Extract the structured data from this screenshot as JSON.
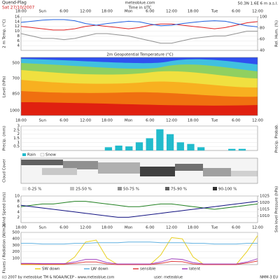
{
  "header": {
    "location": "Quend-Plag",
    "date": "Sat 27/10/2007",
    "site": "meteoblue.com",
    "time_note": "Time in UTC",
    "coords": "50.3N 1.6E 6 m a.s.l."
  },
  "time_axis": [
    "18:00",
    "Sun",
    "6:00",
    "12:00",
    "18:00",
    "Mon",
    "6:00",
    "12:00",
    "18:00",
    "Tue",
    "6:00",
    "12:00"
  ],
  "chart_data": [
    {
      "type": "line",
      "y_label": "2 m Temp. (°C)",
      "y2_label": "Rel. Hum. (%)",
      "ylim": [
        2,
        16
      ],
      "yticks": [
        4,
        6,
        8,
        10,
        12,
        14,
        16
      ],
      "y2lim": [
        40,
        100
      ],
      "y2ticks": [
        40,
        60,
        80,
        100
      ],
      "series": [
        {
          "color": "#e02020",
          "values": [
            12,
            11.5,
            11,
            10.5,
            10.5,
            11,
            12,
            12.5,
            12,
            11.5,
            11,
            11.5,
            12.5,
            13,
            13,
            12.5,
            12,
            11.5,
            11,
            11.5,
            12.5,
            13.5,
            14
          ]
        },
        {
          "color": "#2060e0",
          "axis": "y2",
          "values": [
            90,
            92,
            94,
            95,
            95,
            93,
            88,
            85,
            88,
            90,
            92,
            91,
            87,
            84,
            85,
            88,
            90,
            92,
            93,
            92,
            88,
            84,
            82
          ]
        },
        {
          "color": "#909090",
          "values": [
            9,
            8,
            7,
            7,
            6.5,
            7,
            8,
            9,
            9,
            8.5,
            8,
            7,
            6,
            5,
            5,
            6,
            7,
            7.5,
            8,
            8,
            9,
            10,
            10
          ]
        }
      ]
    },
    {
      "type": "bar",
      "y_label": "Precip. (mm)",
      "y2_label": "Precip. Probab.",
      "ylim": [
        0,
        3
      ],
      "yticks": [
        0.5,
        1,
        1.5,
        2,
        2.5,
        3
      ],
      "color": "#22bbcc",
      "values": [
        0,
        0,
        0,
        0,
        0,
        0,
        0,
        0,
        0.4,
        0.6,
        0.5,
        1.0,
        1.5,
        2.6,
        2.0,
        1.0,
        0.8,
        0.4,
        0,
        0,
        0.2,
        0.2,
        0
      ]
    },
    {
      "type": "line",
      "y_label": "Wind Speed (m/s)",
      "y2_label": "Sea level Pressure (hPa)",
      "ylim": [
        0,
        10
      ],
      "yticks": [
        2,
        4,
        6,
        8,
        10
      ],
      "y2lim": [
        1005,
        1025
      ],
      "y2ticks": [
        1010,
        1015,
        1020,
        1025
      ],
      "series": [
        {
          "color": "#208020",
          "values": [
            6,
            6.5,
            7,
            7,
            7.5,
            8,
            8,
            7.5,
            7,
            6.5,
            6,
            6,
            6.5,
            7,
            7,
            6.5,
            6,
            5.5,
            5,
            5.5,
            6,
            6.5,
            7
          ]
        },
        {
          "color": "#101080",
          "axis": "y2",
          "values": [
            1018,
            1017,
            1016,
            1015,
            1014,
            1013,
            1012,
            1011,
            1010,
            1009,
            1009,
            1010,
            1011,
            1012,
            1013,
            1014,
            1015,
            1016,
            1017,
            1018,
            1019,
            1020,
            1021
          ]
        }
      ]
    },
    {
      "type": "line",
      "y_label": "Fluxes / Radiation (W/m2)",
      "ylim": [
        0,
        500
      ],
      "yticks": [
        100,
        200,
        300,
        400,
        500
      ],
      "legend": "bottom",
      "series": [
        {
          "name": "SW down",
          "color": "#e8d020",
          "values": [
            0,
            0,
            0,
            0,
            0,
            120,
            350,
            380,
            100,
            0,
            0,
            0,
            0,
            150,
            420,
            400,
            120,
            0,
            0,
            0,
            0,
            200,
            450
          ]
        },
        {
          "name": "LW down",
          "color": "#60b0e0",
          "values": [
            330,
            330,
            320,
            320,
            320,
            330,
            330,
            340,
            340,
            340,
            350,
            350,
            350,
            340,
            340,
            340,
            330,
            330,
            320,
            320,
            320,
            330,
            330
          ]
        },
        {
          "name": "sensible",
          "color": "#e04040",
          "values": [
            10,
            10,
            5,
            5,
            5,
            20,
            40,
            40,
            10,
            0,
            0,
            0,
            0,
            20,
            50,
            45,
            10,
            0,
            0,
            0,
            0,
            25,
            55
          ]
        },
        {
          "name": "latent",
          "color": "#a040c0",
          "values": [
            20,
            20,
            15,
            15,
            15,
            40,
            80,
            80,
            30,
            10,
            10,
            10,
            10,
            40,
            90,
            80,
            30,
            10,
            10,
            10,
            10,
            40,
            90
          ]
        }
      ]
    }
  ],
  "profile": {
    "title": "2m Geopotential Temperature (°C)",
    "y_label": "Level (hPa)",
    "levels": [
      "500",
      "700",
      "850",
      "1000"
    ]
  },
  "precip_legend": [
    "Rain",
    "Snow"
  ],
  "cloud": {
    "y_label": "Cloud Cover",
    "legend": [
      "0-25 %",
      "25-50 %",
      "50-75 %",
      "75-90 %",
      "90-100 %"
    ]
  },
  "footer": {
    "copyright": "(c) 2007 by meteoblue TM & NOAA/NCEP - www.meteoblue.com",
    "user": "user: meteoblue",
    "model": "NMM-3 EU"
  }
}
